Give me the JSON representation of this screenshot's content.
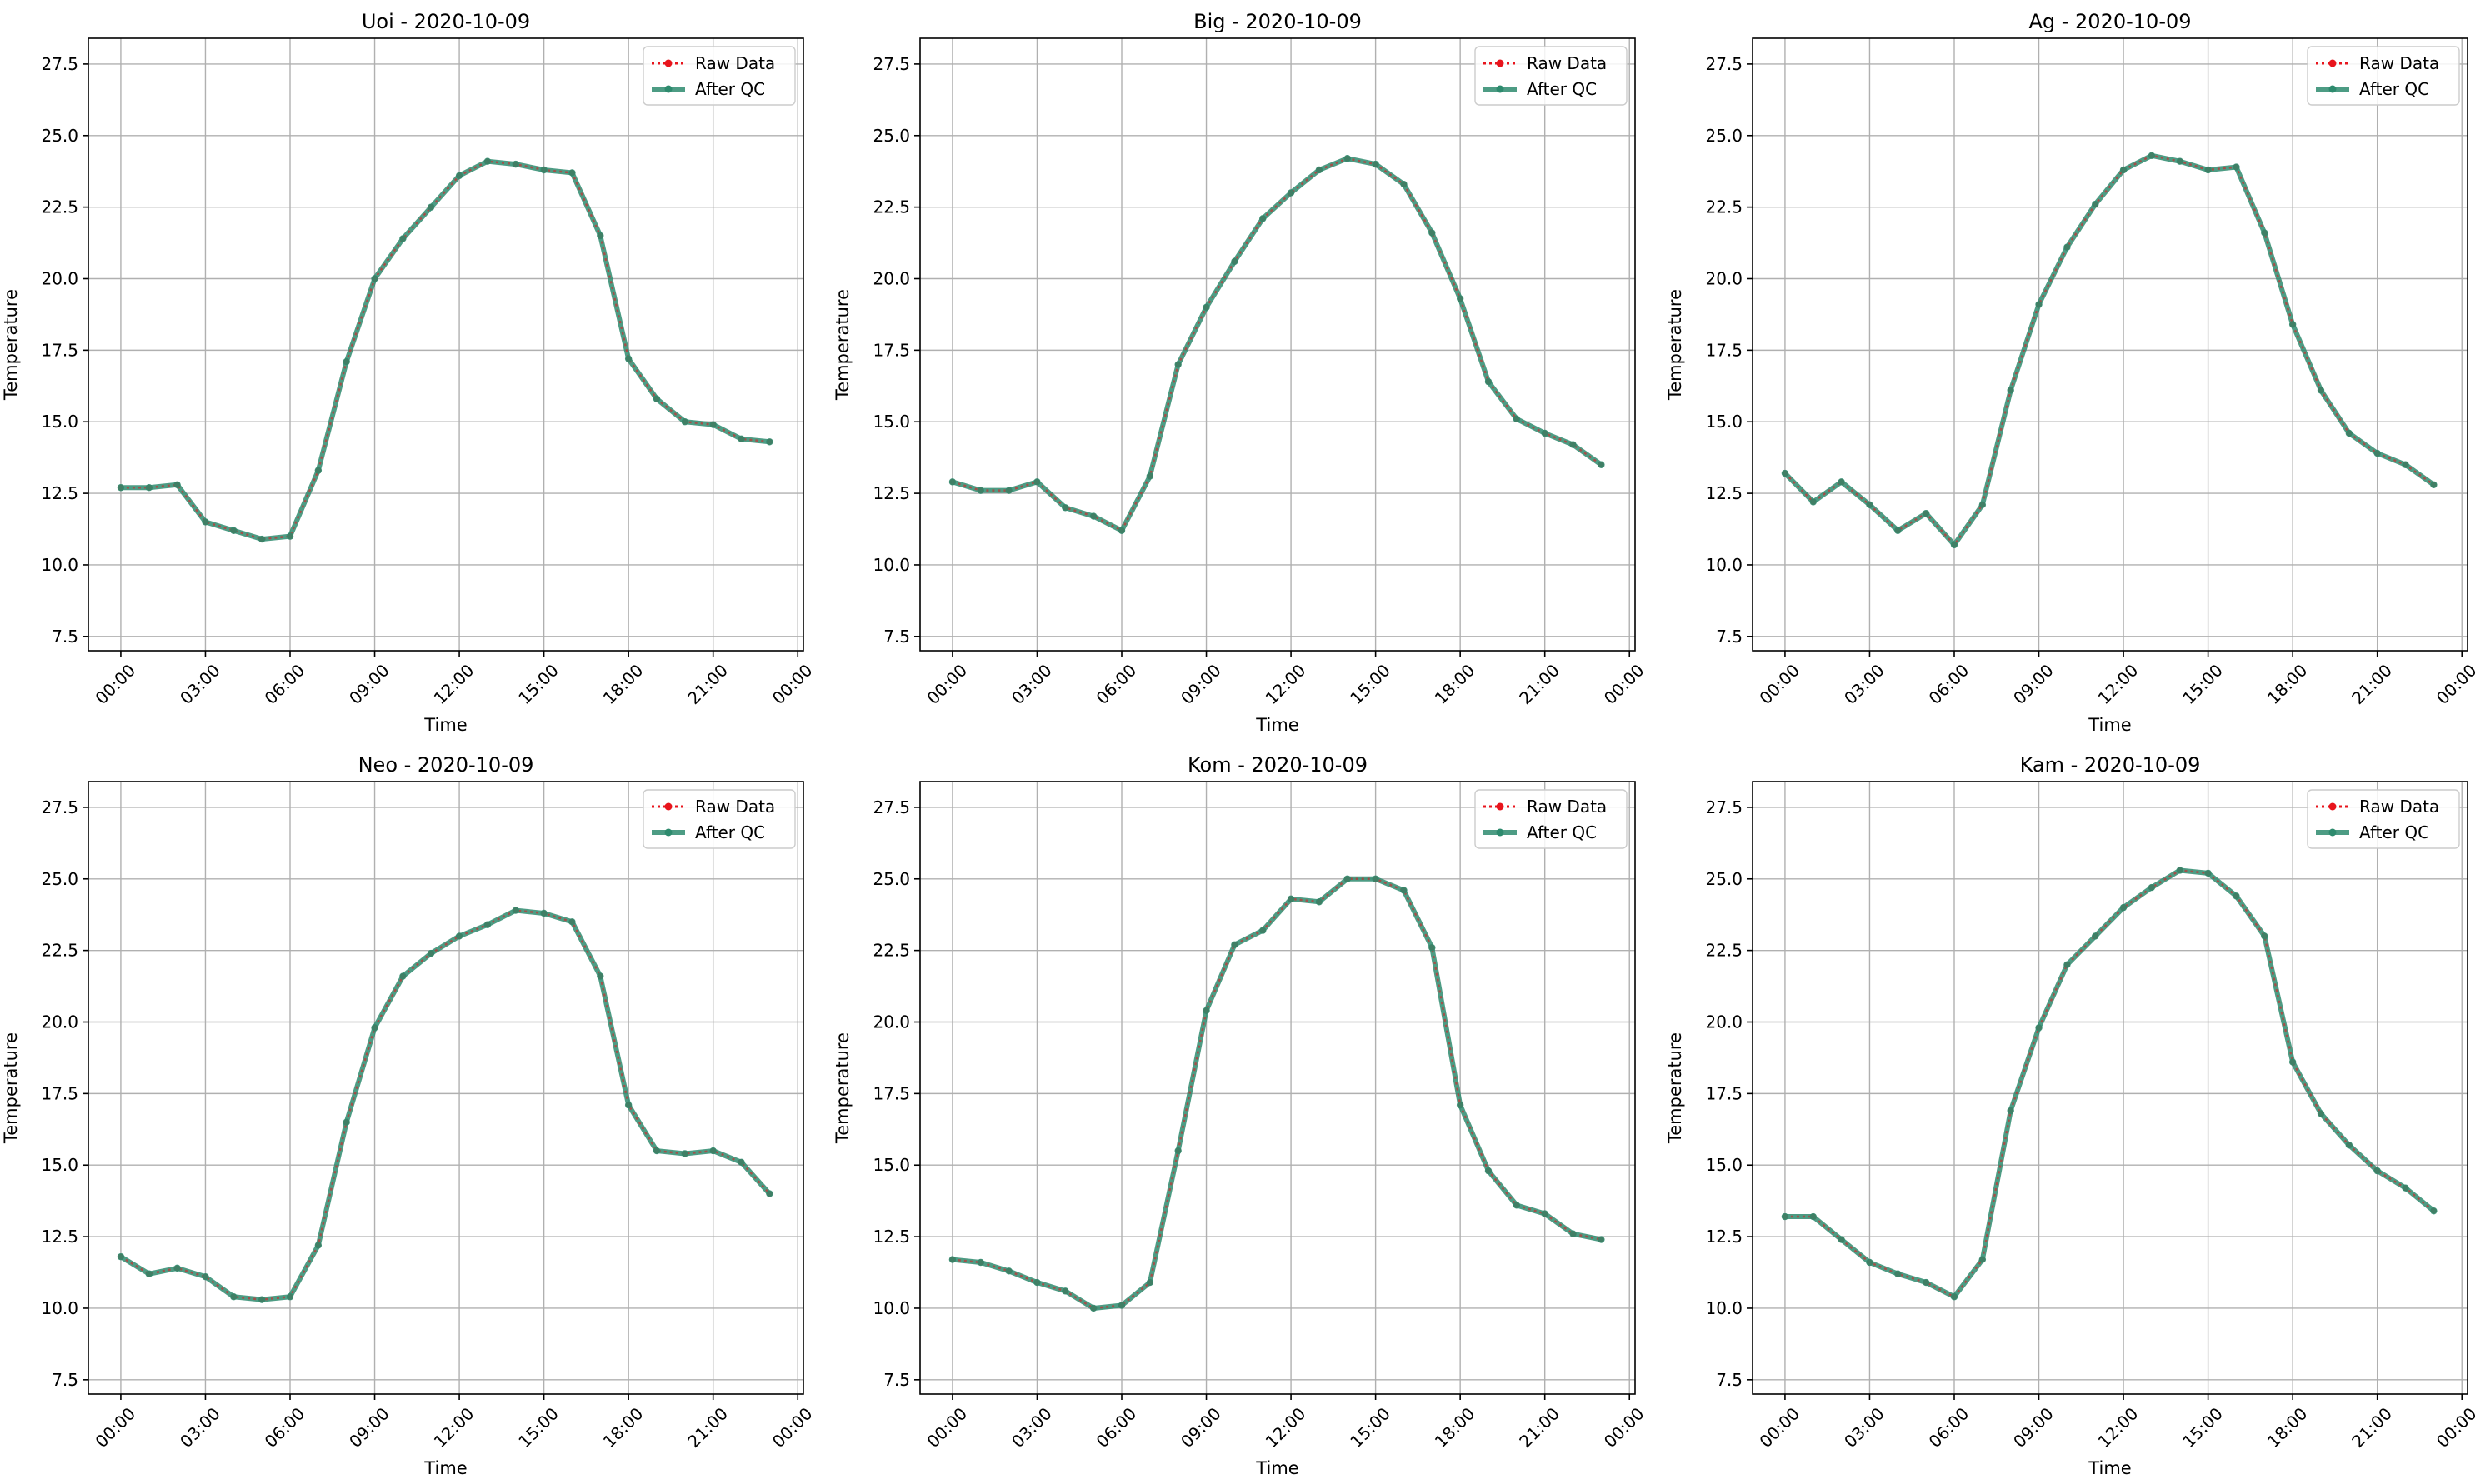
{
  "colors": {
    "raw": "#e8141c",
    "qc": "#2e8b6e",
    "grid": "#b0b0b0",
    "axes": "#000000"
  },
  "chart_data": [
    {
      "type": "line",
      "title": "Uoi - 2020-10-09",
      "xlabel": "Time",
      "ylabel": "Temperature",
      "ylim": [
        7.0,
        28.4
      ],
      "yticks": [
        "7.5",
        "10.0",
        "12.5",
        "15.0",
        "17.5",
        "20.0",
        "22.5",
        "25.0",
        "27.5"
      ],
      "xticks": [
        "00:00",
        "03:00",
        "06:00",
        "09:00",
        "12:00",
        "15:00",
        "18:00",
        "21:00",
        "00:00"
      ],
      "grid": true,
      "legend": "top-right",
      "x": [
        "00:00",
        "01:00",
        "02:00",
        "03:00",
        "04:00",
        "05:00",
        "06:00",
        "07:00",
        "08:00",
        "09:00",
        "10:00",
        "11:00",
        "12:00",
        "13:00",
        "14:00",
        "15:00",
        "16:00",
        "17:00",
        "18:00",
        "19:00",
        "20:00",
        "21:00",
        "22:00",
        "23:00"
      ],
      "series": [
        {
          "name": "Raw Data",
          "values": [
            12.7,
            12.7,
            12.8,
            11.5,
            11.2,
            10.9,
            11.0,
            13.3,
            17.1,
            20.0,
            21.4,
            22.5,
            23.6,
            24.1,
            24.0,
            23.8,
            23.7,
            21.5,
            17.2,
            15.8,
            15.0,
            14.9,
            14.4,
            14.3
          ]
        },
        {
          "name": "After QC",
          "values": [
            12.7,
            12.7,
            12.8,
            11.5,
            11.2,
            10.9,
            11.0,
            13.3,
            17.1,
            20.0,
            21.4,
            22.5,
            23.6,
            24.1,
            24.0,
            23.8,
            23.7,
            21.5,
            17.2,
            15.8,
            15.0,
            14.9,
            14.4,
            14.3
          ]
        }
      ]
    },
    {
      "type": "line",
      "title": "Big - 2020-10-09",
      "xlabel": "Time",
      "ylabel": "Temperature",
      "ylim": [
        7.0,
        28.4
      ],
      "yticks": [
        "7.5",
        "10.0",
        "12.5",
        "15.0",
        "17.5",
        "20.0",
        "22.5",
        "25.0",
        "27.5"
      ],
      "xticks": [
        "00:00",
        "03:00",
        "06:00",
        "09:00",
        "12:00",
        "15:00",
        "18:00",
        "21:00",
        "00:00"
      ],
      "grid": true,
      "legend": "top-right",
      "x": [
        "00:00",
        "01:00",
        "02:00",
        "03:00",
        "04:00",
        "05:00",
        "06:00",
        "07:00",
        "08:00",
        "09:00",
        "10:00",
        "11:00",
        "12:00",
        "13:00",
        "14:00",
        "15:00",
        "16:00",
        "17:00",
        "18:00",
        "19:00",
        "20:00",
        "21:00",
        "22:00",
        "23:00"
      ],
      "series": [
        {
          "name": "Raw Data",
          "values": [
            12.9,
            12.6,
            12.6,
            12.9,
            12.0,
            11.7,
            11.2,
            13.1,
            17.0,
            19.0,
            20.6,
            22.1,
            23.0,
            23.8,
            24.2,
            24.0,
            23.3,
            21.6,
            19.3,
            16.4,
            15.1,
            14.6,
            14.2,
            13.5
          ]
        },
        {
          "name": "After QC",
          "values": [
            12.9,
            12.6,
            12.6,
            12.9,
            12.0,
            11.7,
            11.2,
            13.1,
            17.0,
            19.0,
            20.6,
            22.1,
            23.0,
            23.8,
            24.2,
            24.0,
            23.3,
            21.6,
            19.3,
            16.4,
            15.1,
            14.6,
            14.2,
            13.5
          ]
        }
      ]
    },
    {
      "type": "line",
      "title": "Ag - 2020-10-09",
      "xlabel": "Time",
      "ylabel": "Temperature",
      "ylim": [
        7.0,
        28.4
      ],
      "yticks": [
        "7.5",
        "10.0",
        "12.5",
        "15.0",
        "17.5",
        "20.0",
        "22.5",
        "25.0",
        "27.5"
      ],
      "xticks": [
        "00:00",
        "03:00",
        "06:00",
        "09:00",
        "12:00",
        "15:00",
        "18:00",
        "21:00",
        "00:00"
      ],
      "grid": true,
      "legend": "top-right",
      "x": [
        "00:00",
        "01:00",
        "02:00",
        "03:00",
        "04:00",
        "05:00",
        "06:00",
        "07:00",
        "08:00",
        "09:00",
        "10:00",
        "11:00",
        "12:00",
        "13:00",
        "14:00",
        "15:00",
        "16:00",
        "17:00",
        "18:00",
        "19:00",
        "20:00",
        "21:00",
        "22:00",
        "23:00"
      ],
      "series": [
        {
          "name": "Raw Data",
          "values": [
            13.2,
            12.2,
            12.9,
            12.1,
            11.2,
            11.8,
            10.7,
            12.1,
            16.1,
            19.1,
            21.1,
            22.6,
            23.8,
            24.3,
            24.1,
            23.8,
            23.9,
            21.6,
            18.4,
            16.1,
            14.6,
            13.9,
            13.5,
            12.8
          ]
        },
        {
          "name": "After QC",
          "values": [
            13.2,
            12.2,
            12.9,
            12.1,
            11.2,
            11.8,
            10.7,
            12.1,
            16.1,
            19.1,
            21.1,
            22.6,
            23.8,
            24.3,
            24.1,
            23.8,
            23.9,
            21.6,
            18.4,
            16.1,
            14.6,
            13.9,
            13.5,
            12.8
          ]
        }
      ]
    },
    {
      "type": "line",
      "title": "Neo - 2020-10-09",
      "xlabel": "Time",
      "ylabel": "Temperature",
      "ylim": [
        7.0,
        28.4
      ],
      "yticks": [
        "7.5",
        "10.0",
        "12.5",
        "15.0",
        "17.5",
        "20.0",
        "22.5",
        "25.0",
        "27.5"
      ],
      "xticks": [
        "00:00",
        "03:00",
        "06:00",
        "09:00",
        "12:00",
        "15:00",
        "18:00",
        "21:00",
        "00:00"
      ],
      "grid": true,
      "legend": "top-right",
      "x": [
        "00:00",
        "01:00",
        "02:00",
        "03:00",
        "04:00",
        "05:00",
        "06:00",
        "07:00",
        "08:00",
        "09:00",
        "10:00",
        "11:00",
        "12:00",
        "13:00",
        "14:00",
        "15:00",
        "16:00",
        "17:00",
        "18:00",
        "19:00",
        "20:00",
        "21:00",
        "22:00",
        "23:00"
      ],
      "series": [
        {
          "name": "Raw Data",
          "values": [
            11.8,
            11.2,
            11.4,
            11.1,
            10.4,
            10.3,
            10.4,
            12.2,
            16.5,
            19.8,
            21.6,
            22.4,
            23.0,
            23.4,
            23.9,
            23.8,
            23.5,
            21.6,
            17.1,
            15.5,
            15.4,
            15.5,
            15.1,
            14.0
          ]
        },
        {
          "name": "After QC",
          "values": [
            11.8,
            11.2,
            11.4,
            11.1,
            10.4,
            10.3,
            10.4,
            12.2,
            16.5,
            19.8,
            21.6,
            22.4,
            23.0,
            23.4,
            23.9,
            23.8,
            23.5,
            21.6,
            17.1,
            15.5,
            15.4,
            15.5,
            15.1,
            14.0
          ]
        }
      ]
    },
    {
      "type": "line",
      "title": "Kom - 2020-10-09",
      "xlabel": "Time",
      "ylabel": "Temperature",
      "ylim": [
        7.0,
        28.4
      ],
      "yticks": [
        "7.5",
        "10.0",
        "12.5",
        "15.0",
        "17.5",
        "20.0",
        "22.5",
        "25.0",
        "27.5"
      ],
      "xticks": [
        "00:00",
        "03:00",
        "06:00",
        "09:00",
        "12:00",
        "15:00",
        "18:00",
        "21:00",
        "00:00"
      ],
      "grid": true,
      "legend": "top-right",
      "x": [
        "00:00",
        "01:00",
        "02:00",
        "03:00",
        "04:00",
        "05:00",
        "06:00",
        "07:00",
        "08:00",
        "09:00",
        "10:00",
        "11:00",
        "12:00",
        "13:00",
        "14:00",
        "15:00",
        "16:00",
        "17:00",
        "18:00",
        "19:00",
        "20:00",
        "21:00",
        "22:00",
        "23:00"
      ],
      "series": [
        {
          "name": "Raw Data",
          "values": [
            11.7,
            11.6,
            11.3,
            10.9,
            10.6,
            10.0,
            10.1,
            10.9,
            15.5,
            20.4,
            22.7,
            23.2,
            24.3,
            24.2,
            25.0,
            25.0,
            24.6,
            22.6,
            17.1,
            14.8,
            13.6,
            13.3,
            12.6,
            12.4
          ]
        },
        {
          "name": "After QC",
          "values": [
            11.7,
            11.6,
            11.3,
            10.9,
            10.6,
            10.0,
            10.1,
            10.9,
            15.5,
            20.4,
            22.7,
            23.2,
            24.3,
            24.2,
            25.0,
            25.0,
            24.6,
            22.6,
            17.1,
            14.8,
            13.6,
            13.3,
            12.6,
            12.4
          ]
        }
      ]
    },
    {
      "type": "line",
      "title": "Kam - 2020-10-09",
      "xlabel": "Time",
      "ylabel": "Temperature",
      "ylim": [
        7.0,
        28.4
      ],
      "yticks": [
        "7.5",
        "10.0",
        "12.5",
        "15.0",
        "17.5",
        "20.0",
        "22.5",
        "25.0",
        "27.5"
      ],
      "xticks": [
        "00:00",
        "03:00",
        "06:00",
        "09:00",
        "12:00",
        "15:00",
        "18:00",
        "21:00",
        "00:00"
      ],
      "grid": true,
      "legend": "top-right",
      "x": [
        "00:00",
        "01:00",
        "02:00",
        "03:00",
        "04:00",
        "05:00",
        "06:00",
        "07:00",
        "08:00",
        "09:00",
        "10:00",
        "11:00",
        "12:00",
        "13:00",
        "14:00",
        "15:00",
        "16:00",
        "17:00",
        "18:00",
        "19:00",
        "20:00",
        "21:00",
        "22:00",
        "23:00"
      ],
      "series": [
        {
          "name": "Raw Data",
          "values": [
            13.2,
            13.2,
            12.4,
            11.6,
            11.2,
            10.9,
            10.4,
            11.7,
            16.9,
            19.8,
            22.0,
            23.0,
            24.0,
            24.7,
            25.3,
            25.2,
            24.4,
            23.0,
            18.6,
            16.8,
            15.7,
            14.8,
            14.2,
            13.4
          ]
        },
        {
          "name": "After QC",
          "values": [
            13.2,
            13.2,
            12.4,
            11.6,
            11.2,
            10.9,
            10.4,
            11.7,
            16.9,
            19.8,
            22.0,
            23.0,
            24.0,
            24.7,
            25.3,
            25.2,
            24.4,
            23.0,
            18.6,
            16.8,
            15.7,
            14.8,
            14.2,
            13.4
          ]
        }
      ]
    }
  ]
}
